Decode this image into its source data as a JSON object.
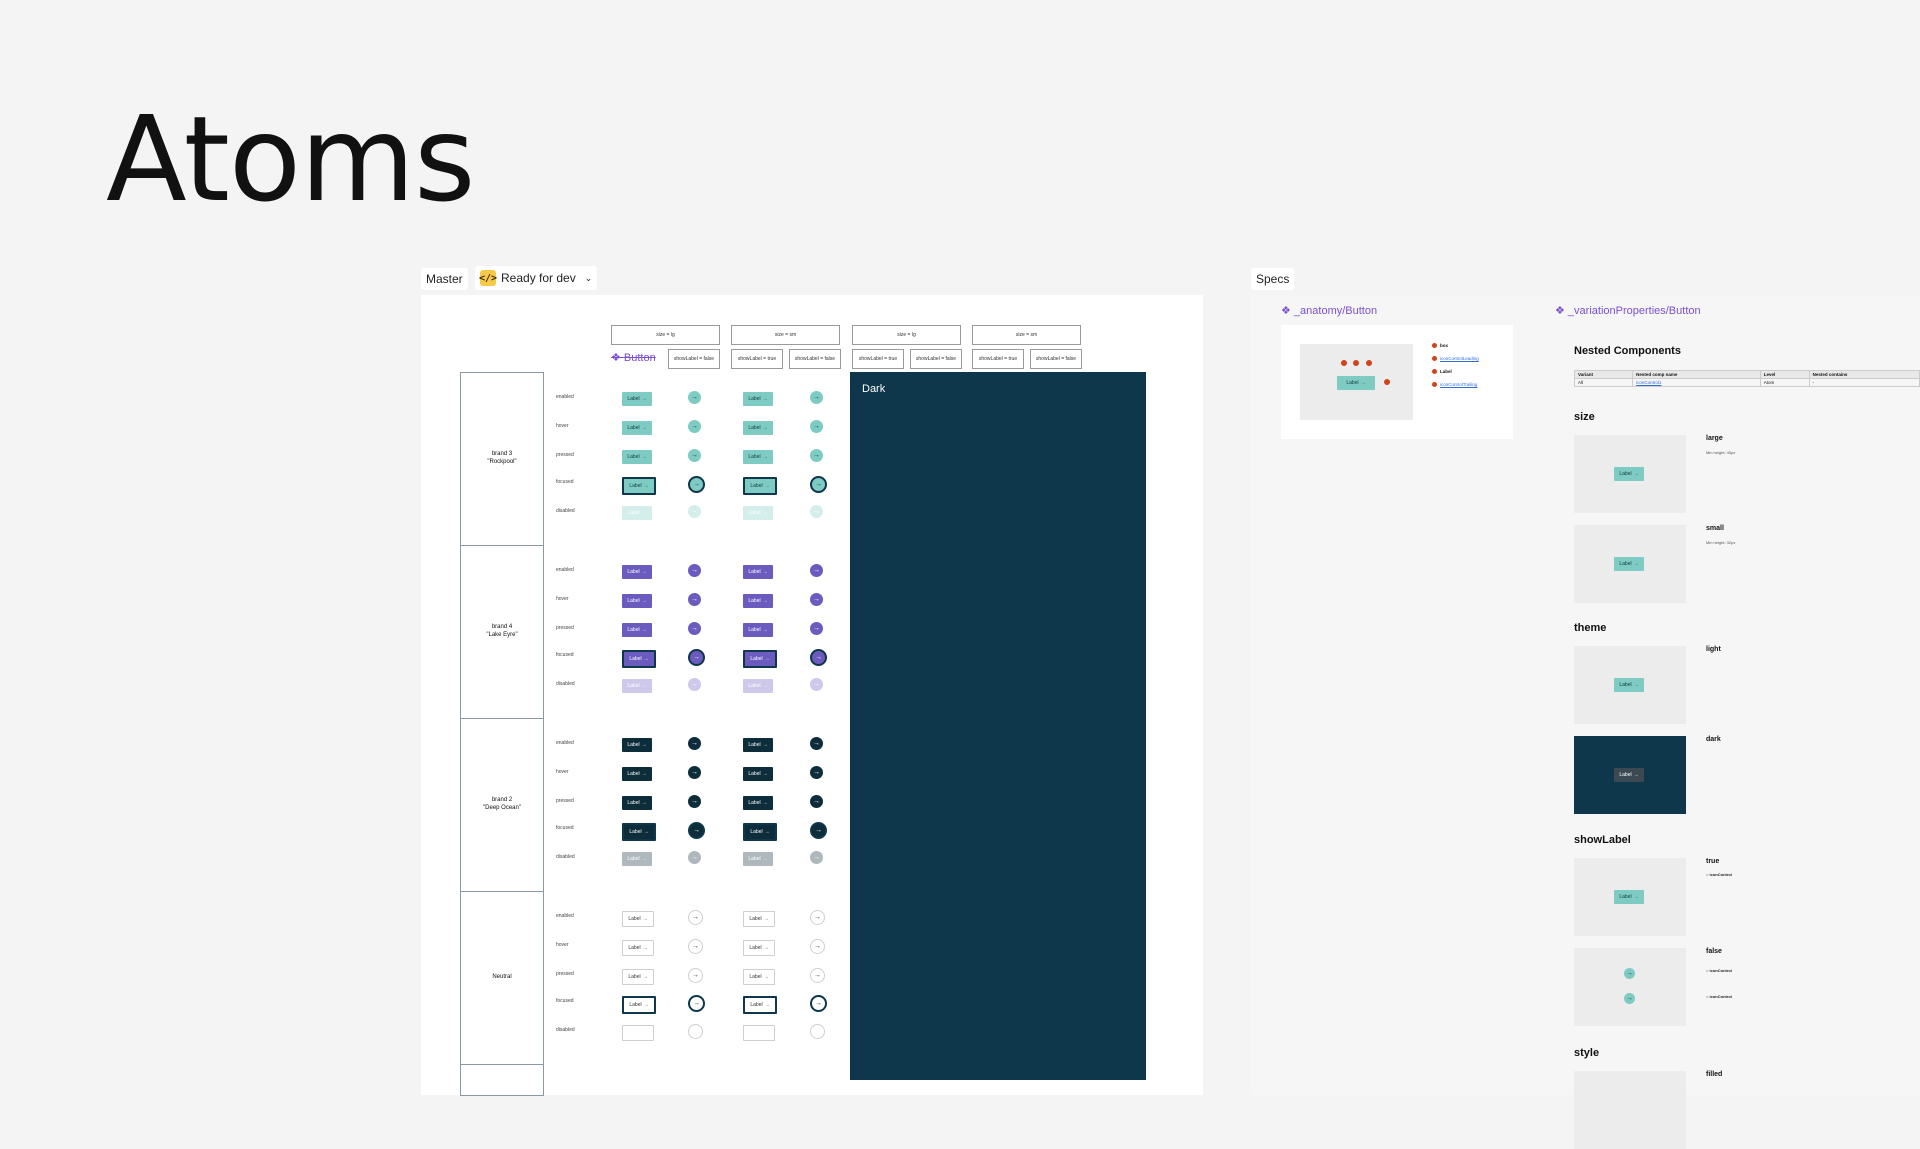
{
  "page": {
    "title": "Atoms"
  },
  "tags": {
    "master": "Master",
    "ready": "Ready for dev",
    "specs": "Specs"
  },
  "master": {
    "component_title": "Button",
    "size_headers": [
      "size = lg",
      "size = sm",
      "size = lg",
      "size = sm"
    ],
    "show_headers": [
      "showLabel = true",
      "showLabel = false",
      "showLabel = true",
      "showLabel = false",
      "showLabel = true",
      "showLabel = false",
      "showLabel = true",
      "showLabel = false"
    ],
    "dark_label": "Dark",
    "brands": [
      {
        "name": "brand 3\n\"Rockpool\"",
        "color": "#7ecbc3",
        "text": "#12403c"
      },
      {
        "name": "brand 4\n\"Lake Eyre\"",
        "color": "#6b5bbf",
        "text": "#ffffff"
      },
      {
        "name": "brand 2\n\"Deep Ocean\"",
        "color": "#0e2d3a",
        "text": "#ffffff"
      },
      {
        "name": "Neutral",
        "color": "#ffffff",
        "text": "#333333"
      }
    ],
    "states": [
      "enabled",
      "hover",
      "pressed",
      "focused",
      "disabled"
    ],
    "button_label": "Label",
    "arrow": "→"
  },
  "specs": {
    "anatomy_link": "_anatomy/Button",
    "variation_link": "_variationProperties/Button",
    "anatomy_legend": [
      "box",
      "iconControlLeading",
      "Label",
      "iconControlTrailing"
    ],
    "nested_title": "Nested Components",
    "nested_headers": [
      "Variant",
      "Nested comp name",
      "Level",
      "Nested contains"
    ],
    "nested_row": [
      "All",
      "iconControl1",
      "Atom",
      "-"
    ],
    "sections": [
      {
        "title": "size",
        "items": [
          {
            "label": "large",
            "note": "Min height: 40px"
          },
          {
            "label": "small",
            "note": "Min height: 32px"
          }
        ]
      },
      {
        "title": "theme",
        "items": [
          {
            "label": "light"
          },
          {
            "label": "dark"
          }
        ]
      },
      {
        "title": "showLabel",
        "items": [
          {
            "label": "true"
          },
          {
            "label": "false"
          }
        ]
      },
      {
        "title": "style",
        "items": [
          {
            "label": "filled"
          }
        ]
      }
    ],
    "sl_true_icon": "iconControl",
    "sl_false_icons": [
      "iconControl",
      "iconControl"
    ]
  },
  "colors": {
    "accent": "#7b4fd1",
    "dark_panel": "#0e374c",
    "anatomy_dot": "#d2421b"
  }
}
